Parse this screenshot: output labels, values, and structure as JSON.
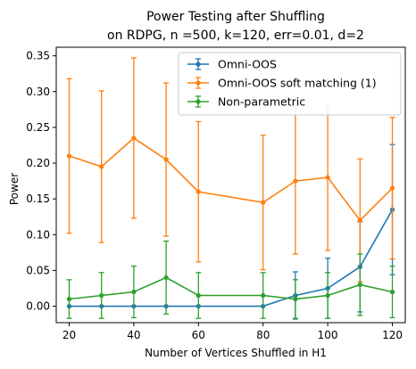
{
  "chart_data": {
    "type": "line",
    "title_lines": [
      "Power Testing after Shuffling",
      "on RDPG, n =500, k=120, err=0.01, d=2"
    ],
    "xlabel": "Number of Vertices Shuffled in H1",
    "ylabel": "Power",
    "xlim": [
      16,
      124
    ],
    "ylim": [
      -0.023,
      0.362
    ],
    "xticks": [
      20,
      40,
      60,
      80,
      100,
      120
    ],
    "yticks": [
      0.0,
      0.05,
      0.1,
      0.15,
      0.2,
      0.25,
      0.3,
      0.35
    ],
    "ytick_labels": [
      "0.00",
      "0.05",
      "0.10",
      "0.15",
      "0.20",
      "0.25",
      "0.30",
      "0.35"
    ],
    "legend_position": "upper-right",
    "x": [
      20,
      30,
      40,
      50,
      60,
      80,
      90,
      100,
      110,
      120
    ],
    "series": [
      {
        "name": "Omni-OOS",
        "color": "#1f77b4",
        "values": [
          0.0,
          0.0,
          0.0,
          0.0,
          0.0,
          0.0,
          0.015,
          0.025,
          0.055,
          0.135
        ],
        "err": [
          0,
          0,
          0,
          0,
          0,
          0,
          0.033,
          0.042,
          0.063,
          0.091
        ]
      },
      {
        "name": "Omni-OOS soft matching (1)",
        "color": "#ff7f0e",
        "values": [
          0.21,
          0.195,
          0.235,
          0.205,
          0.16,
          0.145,
          0.175,
          0.18,
          0.12,
          0.165
        ],
        "err": [
          0.108,
          0.106,
          0.112,
          0.107,
          0.098,
          0.094,
          0.102,
          0.102,
          0.086,
          0.099
        ]
      },
      {
        "name": "Non-parametric",
        "color": "#2ca02c",
        "values": [
          0.01,
          0.015,
          0.02,
          0.04,
          0.015,
          0.015,
          0.01,
          0.015,
          0.03,
          0.02
        ],
        "err": [
          0.027,
          0.032,
          0.036,
          0.051,
          0.032,
          0.032,
          0.027,
          0.032,
          0.043,
          0.036
        ]
      }
    ]
  }
}
